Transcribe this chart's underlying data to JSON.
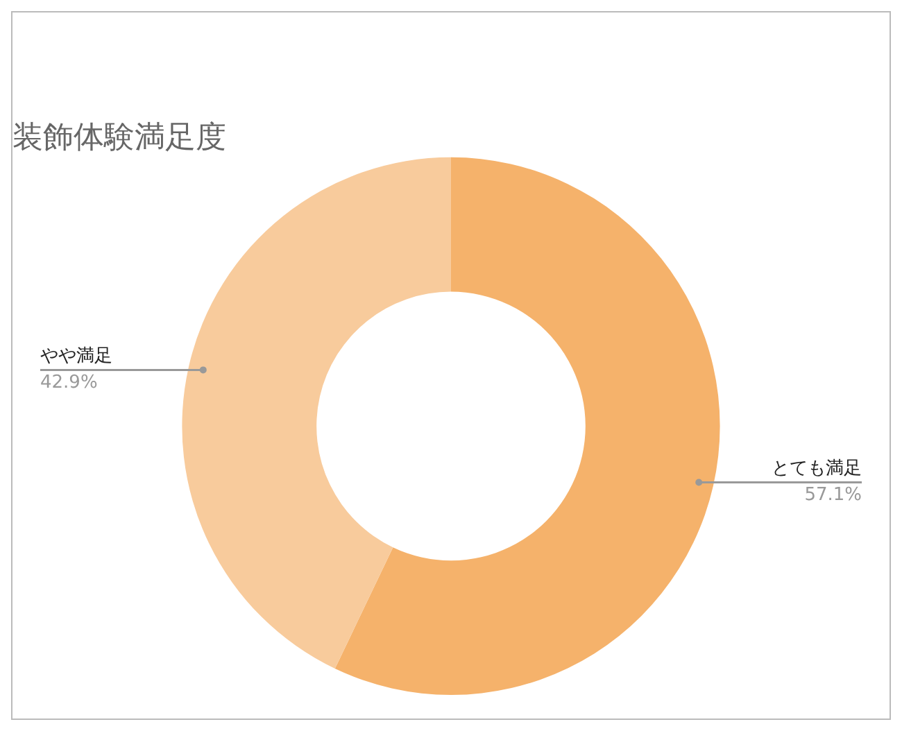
{
  "chart_data": {
    "type": "donut",
    "title": "装飾体験満足度",
    "categories": [
      "とても満足",
      "やや満足"
    ],
    "values": [
      57.1,
      42.9
    ],
    "colors": [
      "#f5b26b",
      "#f8cb9c"
    ],
    "value_labels": [
      "57.1%",
      "42.9%"
    ],
    "legend": false
  }
}
